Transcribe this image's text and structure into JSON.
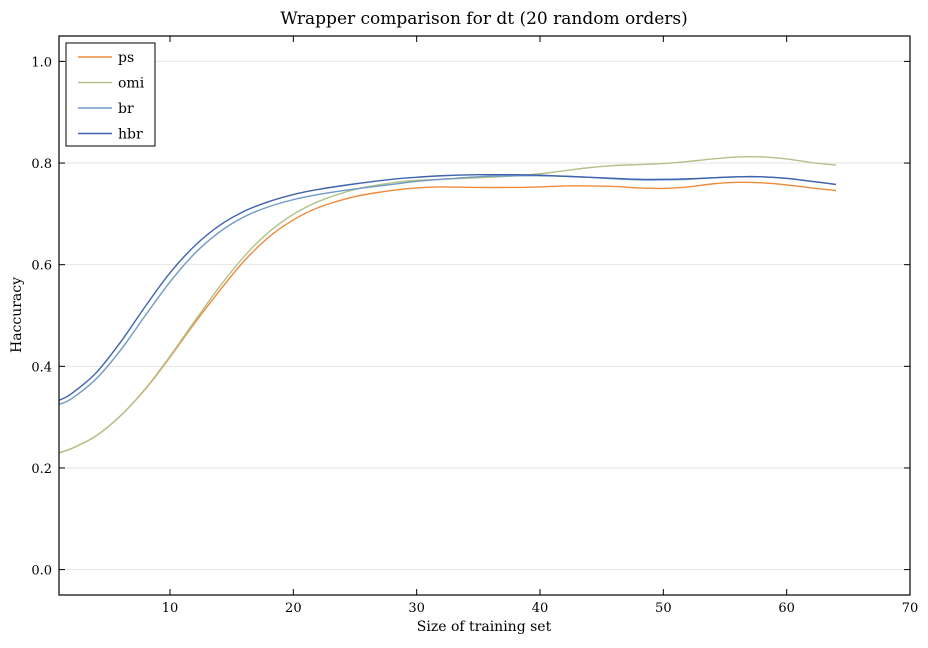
{
  "chart_data": {
    "type": "line",
    "title": "Wrapper comparison for dt (20 random orders)",
    "xlabel": "Size of training set",
    "ylabel": "Haccuracy",
    "xlim": [
      1,
      70
    ],
    "ylim": [
      -0.05,
      1.05
    ],
    "xticks": [
      10,
      20,
      30,
      40,
      50,
      60,
      70
    ],
    "yticks": [
      0.0,
      0.2,
      0.4,
      0.6,
      0.8,
      1.0
    ],
    "xtick_labels": [
      "10",
      "20",
      "30",
      "40",
      "50",
      "60",
      "70"
    ],
    "ytick_labels": [
      "0.0",
      "0.2",
      "0.4",
      "0.6",
      "0.8",
      "1.0"
    ],
    "grid": "horizontal",
    "legend_position": "top-left",
    "x": [
      1,
      2,
      4,
      6,
      8,
      10,
      12,
      14,
      16,
      18,
      20,
      22,
      25,
      28,
      30,
      32,
      35,
      38,
      40,
      42,
      44,
      46,
      48,
      50,
      52,
      54,
      56,
      58,
      60,
      62,
      64
    ],
    "series": [
      {
        "name": "ps",
        "color": "#ee8a3c",
        "values": [
          0.23,
          0.238,
          0.263,
          0.303,
          0.355,
          0.418,
          0.485,
          0.548,
          0.607,
          0.654,
          0.688,
          0.712,
          0.734,
          0.746,
          0.751,
          0.753,
          0.752,
          0.752,
          0.753,
          0.755,
          0.755,
          0.754,
          0.751,
          0.75,
          0.753,
          0.759,
          0.762,
          0.761,
          0.757,
          0.751,
          0.746
        ]
      },
      {
        "name": "omi",
        "color": "#b3c289",
        "values": [
          0.23,
          0.238,
          0.263,
          0.303,
          0.356,
          0.42,
          0.489,
          0.556,
          0.616,
          0.664,
          0.699,
          0.724,
          0.748,
          0.761,
          0.766,
          0.768,
          0.771,
          0.775,
          0.779,
          0.785,
          0.791,
          0.795,
          0.797,
          0.799,
          0.803,
          0.808,
          0.812,
          0.812,
          0.808,
          0.801,
          0.796
        ]
      },
      {
        "name": "br",
        "color": "#6e9ac5",
        "values": [
          0.325,
          0.336,
          0.375,
          0.432,
          0.5,
          0.566,
          0.622,
          0.664,
          0.694,
          0.714,
          0.728,
          0.738,
          0.749,
          0.758,
          0.764,
          0.768,
          0.773,
          0.775,
          0.775,
          0.774,
          0.772,
          0.769,
          0.767,
          0.767,
          0.768,
          0.771,
          0.773,
          0.773,
          0.77,
          0.764,
          0.758
        ]
      },
      {
        "name": "hbr",
        "color": "#3f63ae",
        "values": [
          0.333,
          0.346,
          0.387,
          0.448,
          0.518,
          0.584,
          0.637,
          0.677,
          0.705,
          0.724,
          0.738,
          0.748,
          0.759,
          0.768,
          0.772,
          0.775,
          0.777,
          0.777,
          0.776,
          0.774,
          0.772,
          0.77,
          0.768,
          0.768,
          0.769,
          0.771,
          0.773,
          0.773,
          0.77,
          0.764,
          0.758
        ]
      }
    ]
  }
}
